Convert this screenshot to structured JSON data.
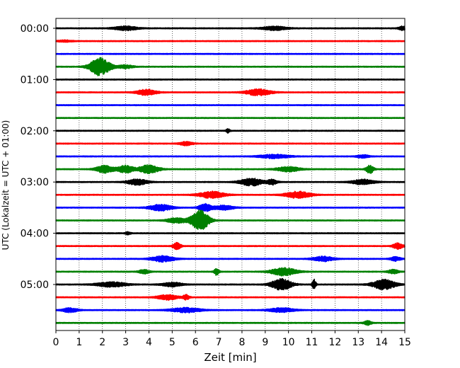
{
  "chart_data": {
    "type": "line",
    "title": "",
    "xlabel": "Zeit  [min]",
    "ylabel": "UTC (Lokalzeit = UTC + 01:00)",
    "xlim": [
      0,
      15
    ],
    "x_ticks": [
      "0",
      "1",
      "2",
      "3",
      "4",
      "5",
      "6",
      "7",
      "8",
      "9",
      "10",
      "11",
      "12",
      "13",
      "14",
      "15"
    ],
    "y_ticks": [
      "00:00",
      "01:00",
      "02:00",
      "03:00",
      "04:00",
      "05:00"
    ],
    "trace_interval_min": 15,
    "grid_x": true,
    "trace_colors": [
      "#000000",
      "#ff0000",
      "#0000ff",
      "#008000"
    ],
    "traces": [
      {
        "start": "00:00",
        "bursts": [
          [
            3.0,
            0.9,
            0.5
          ],
          [
            9.4,
            1.0,
            0.45
          ],
          [
            14.9,
            0.3,
            0.5
          ]
        ]
      },
      {
        "start": "00:15",
        "bursts": [
          [
            0.4,
            0.6,
            0.2
          ]
        ]
      },
      {
        "start": "00:30",
        "bursts": []
      },
      {
        "start": "00:45",
        "bursts": [
          [
            1.9,
            0.8,
            2.2
          ],
          [
            3.0,
            0.6,
            0.4
          ]
        ]
      },
      {
        "start": "01:00",
        "bursts": []
      },
      {
        "start": "01:15",
        "bursts": [
          [
            3.9,
            0.8,
            0.7
          ],
          [
            8.7,
            1.0,
            0.75
          ]
        ]
      },
      {
        "start": "01:30",
        "bursts": []
      },
      {
        "start": "01:45",
        "bursts": []
      },
      {
        "start": "02:00",
        "bursts": [
          [
            7.4,
            0.15,
            0.45
          ]
        ]
      },
      {
        "start": "02:15",
        "bursts": [
          [
            5.6,
            0.5,
            0.45
          ]
        ]
      },
      {
        "start": "02:30",
        "bursts": [
          [
            9.4,
            1.2,
            0.45
          ],
          [
            13.2,
            0.5,
            0.35
          ]
        ]
      },
      {
        "start": "02:45",
        "bursts": [
          [
            2.1,
            0.7,
            0.9
          ],
          [
            3.0,
            0.6,
            0.9
          ],
          [
            4.0,
            0.8,
            1.0
          ],
          [
            10.0,
            0.9,
            0.6
          ],
          [
            13.5,
            0.3,
            1.0
          ]
        ]
      },
      {
        "start": "03:00",
        "bursts": [
          [
            3.5,
            0.8,
            0.7
          ],
          [
            8.4,
            0.9,
            0.9
          ],
          [
            9.3,
            0.4,
            0.6
          ],
          [
            13.2,
            0.9,
            0.6
          ]
        ]
      },
      {
        "start": "03:15",
        "bursts": [
          [
            6.7,
            1.0,
            0.8
          ],
          [
            10.4,
            1.0,
            0.8
          ]
        ]
      },
      {
        "start": "03:30",
        "bursts": [
          [
            4.5,
            0.9,
            0.75
          ],
          [
            7.2,
            0.8,
            0.55
          ],
          [
            6.4,
            0.5,
            0.9
          ]
        ]
      },
      {
        "start": "03:45",
        "bursts": [
          [
            6.2,
            0.7,
            2.5
          ],
          [
            5.2,
            0.8,
            0.6
          ]
        ]
      },
      {
        "start": "04:00",
        "bursts": [
          [
            3.1,
            0.2,
            0.3
          ]
        ]
      },
      {
        "start": "04:15",
        "bursts": [
          [
            5.2,
            0.3,
            0.9
          ],
          [
            14.7,
            0.4,
            0.7
          ]
        ]
      },
      {
        "start": "04:30",
        "bursts": [
          [
            4.6,
            0.9,
            0.7
          ],
          [
            11.5,
            0.8,
            0.6
          ],
          [
            14.6,
            0.4,
            0.5
          ]
        ]
      },
      {
        "start": "04:45",
        "bursts": [
          [
            3.8,
            0.4,
            0.5
          ],
          [
            6.9,
            0.2,
            0.8
          ],
          [
            9.8,
            1.0,
            0.95
          ],
          [
            14.5,
            0.4,
            0.5
          ]
        ]
      },
      {
        "start": "05:00",
        "bursts": [
          [
            2.4,
            1.2,
            0.6
          ],
          [
            5.0,
            0.8,
            0.5
          ],
          [
            9.7,
            0.8,
            1.4
          ],
          [
            11.1,
            0.15,
            1.2
          ],
          [
            14.1,
            0.9,
            1.2
          ]
        ]
      },
      {
        "start": "05:15",
        "bursts": [
          [
            4.8,
            0.8,
            0.6
          ],
          [
            5.6,
            0.25,
            0.6
          ]
        ]
      },
      {
        "start": "05:30",
        "bursts": [
          [
            0.6,
            0.6,
            0.55
          ],
          [
            5.6,
            1.2,
            0.55
          ],
          [
            9.7,
            1.0,
            0.5
          ]
        ]
      },
      {
        "start": "05:45",
        "bursts": [
          [
            13.4,
            0.3,
            0.5
          ]
        ]
      }
    ]
  }
}
